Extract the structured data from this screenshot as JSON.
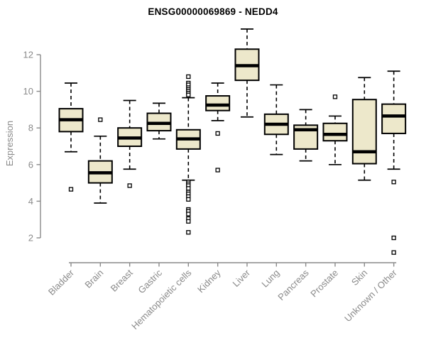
{
  "chart_data": {
    "type": "boxplot",
    "title": "ENSG00000069869 - NEDD4",
    "ylabel": "Expression",
    "xlabel": "",
    "yticks": [
      2,
      4,
      6,
      8,
      10,
      12
    ],
    "ylim": [
      0.6,
      13.5
    ],
    "grid": false,
    "legend": "none",
    "colors": {
      "box_fill": "#EDE8CB",
      "box_border": "#000000",
      "median": "#000000",
      "whisker": "#000000",
      "outlier_fill": "#FFFFFF",
      "axis": "#8A8A8A",
      "title": "#000000",
      "background": "#FFFFFF"
    },
    "categories": [
      "Bladder",
      "Brain",
      "Breast",
      "Gastric",
      "Hematopoietic cells",
      "Kidney",
      "Liver",
      "Lung",
      "Pancreas",
      "Prostate",
      "Skin",
      "Unknown / Other"
    ],
    "boxes": [
      {
        "label": "Bladder",
        "whisker_low": 6.7,
        "q1": 7.8,
        "median": 8.45,
        "q3": 9.05,
        "whisker_high": 10.45,
        "outliers": [
          4.65
        ]
      },
      {
        "label": "Brain",
        "whisker_low": 3.9,
        "q1": 5.0,
        "median": 5.55,
        "q3": 6.2,
        "whisker_high": 7.55,
        "outliers": [
          8.45
        ]
      },
      {
        "label": "Breast",
        "whisker_low": 5.75,
        "q1": 7.0,
        "median": 7.45,
        "q3": 8.0,
        "whisker_high": 9.5,
        "outliers": [
          4.85
        ]
      },
      {
        "label": "Gastric",
        "whisker_low": 7.4,
        "q1": 7.85,
        "median": 8.25,
        "q3": 8.8,
        "whisker_high": 9.35,
        "outliers": []
      },
      {
        "label": "Hematopoietic cells",
        "whisker_low": 5.15,
        "q1": 6.85,
        "median": 7.4,
        "q3": 7.9,
        "whisker_high": 9.65,
        "outliers": [
          10.8,
          10.45,
          10.35,
          10.2,
          10.1,
          10.0,
          9.9,
          9.8,
          5.05,
          4.95,
          4.85,
          4.7,
          4.5,
          4.4,
          4.25,
          4.1,
          3.55,
          3.45,
          3.3,
          3.05,
          2.9,
          2.3
        ]
      },
      {
        "label": "Kidney",
        "whisker_low": 8.4,
        "q1": 8.95,
        "median": 9.25,
        "q3": 9.75,
        "whisker_high": 10.45,
        "outliers": [
          7.7,
          5.7
        ]
      },
      {
        "label": "Liver",
        "whisker_low": 8.6,
        "q1": 10.6,
        "median": 11.4,
        "q3": 12.3,
        "whisker_high": 13.4,
        "outliers": []
      },
      {
        "label": "Lung",
        "whisker_low": 6.55,
        "q1": 7.65,
        "median": 8.2,
        "q3": 8.75,
        "whisker_high": 10.35,
        "outliers": []
      },
      {
        "label": "Pancreas",
        "whisker_low": 6.2,
        "q1": 6.85,
        "median": 7.9,
        "q3": 8.15,
        "whisker_high": 9.0,
        "outliers": []
      },
      {
        "label": "Prostate",
        "whisker_low": 6.0,
        "q1": 7.3,
        "median": 7.65,
        "q3": 8.25,
        "whisker_high": 8.65,
        "outliers": [
          9.7
        ]
      },
      {
        "label": "Skin",
        "whisker_low": 5.15,
        "q1": 6.05,
        "median": 6.7,
        "q3": 9.55,
        "whisker_high": 10.75,
        "outliers": []
      },
      {
        "label": "Unknown / Other",
        "whisker_low": 5.75,
        "q1": 7.7,
        "median": 8.65,
        "q3": 9.3,
        "whisker_high": 11.1,
        "outliers": [
          5.05,
          2.0,
          1.2
        ]
      }
    ]
  }
}
